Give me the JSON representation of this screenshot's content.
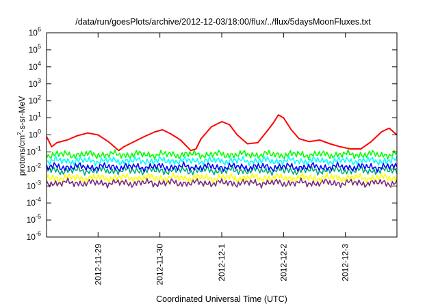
{
  "chart_data": {
    "type": "line",
    "title": "/data/run/goesPlots/archive/2012-12-03/18:00/flux/../flux/5daysMoonFluxes.txt",
    "xlabel": "Coordinated Universal Time (UTC)",
    "ylabel": "protons/cm2-s-sr-MeV",
    "ylabel_main": "protons/cm",
    "ylabel_sup": "2",
    "ylabel_rest": "-s-sr-MeV",
    "yscale": "log",
    "ylim": [
      1e-06,
      1000000.0
    ],
    "xlim": [
      "2012-11-28T04:00",
      "2012-12-03T20:00"
    ],
    "grid": false,
    "legend": "none",
    "x_ticks": [
      {
        "t": "2012-11-29",
        "label": "2012-11-29"
      },
      {
        "t": "2012-11-30",
        "label": "2012-11-30"
      },
      {
        "t": "2012-12-01",
        "label": "2012-12-1"
      },
      {
        "t": "2012-12-02",
        "label": "2012-12-2"
      },
      {
        "t": "2012-12-03",
        "label": "2012-12-3"
      }
    ],
    "y_ticks": [
      {
        "base": "10",
        "exp": "-6",
        "v": 1e-06
      },
      {
        "base": "10",
        "exp": "-5",
        "v": 1e-05
      },
      {
        "base": "10",
        "exp": "-4",
        "v": 0.0001
      },
      {
        "base": "10",
        "exp": "-3",
        "v": 0.001
      },
      {
        "base": "10",
        "exp": "-2",
        "v": 0.01
      },
      {
        "base": "10",
        "exp": "-1",
        "v": 0.1
      },
      {
        "base": "10",
        "exp": "0",
        "v": 1
      },
      {
        "base": "10",
        "exp": "1",
        "v": 10.0
      },
      {
        "base": "10",
        "exp": "2",
        "v": 100.0
      },
      {
        "base": "10",
        "exp": "3",
        "v": 1000.0
      },
      {
        "base": "10",
        "exp": "4",
        "v": 10000.0
      },
      {
        "base": "10",
        "exp": "5",
        "v": 100000.0
      },
      {
        "base": "10",
        "exp": "6",
        "v": 1000000.0
      }
    ],
    "series": [
      {
        "color": "#ff0000",
        "points": [
          [
            "2012-11-28T04:00",
            0.8
          ],
          [
            "2012-11-28T06:00",
            0.2
          ],
          [
            "2012-11-28T08:00",
            0.35
          ],
          [
            "2012-11-28T12:00",
            0.5
          ],
          [
            "2012-11-28T16:00",
            0.9
          ],
          [
            "2012-11-28T20:00",
            1.3
          ],
          [
            "2012-11-29T00:00",
            1.0
          ],
          [
            "2012-11-29T04:00",
            0.4
          ],
          [
            "2012-11-29T08:00",
            0.12
          ],
          [
            "2012-11-29T10:00",
            0.2
          ],
          [
            "2012-11-29T14:00",
            0.4
          ],
          [
            "2012-11-29T18:00",
            0.8
          ],
          [
            "2012-11-29T22:00",
            1.5
          ],
          [
            "2012-11-30T01:00",
            2.0
          ],
          [
            "2012-11-30T04:00",
            1.2
          ],
          [
            "2012-11-30T08:00",
            0.5
          ],
          [
            "2012-11-30T12:00",
            0.12
          ],
          [
            "2012-11-30T14:00",
            0.15
          ],
          [
            "2012-11-30T16:00",
            0.6
          ],
          [
            "2012-11-30T20:00",
            3.0
          ],
          [
            "2012-12-01T00:00",
            6.0
          ],
          [
            "2012-12-01T03:00",
            4.0
          ],
          [
            "2012-12-01T06:00",
            1.0
          ],
          [
            "2012-12-01T10:00",
            0.3
          ],
          [
            "2012-12-01T14:00",
            0.35
          ],
          [
            "2012-12-01T18:00",
            2.0
          ],
          [
            "2012-12-01T20:00",
            5.0
          ],
          [
            "2012-12-01T22:00",
            15.0
          ],
          [
            "2012-12-02T00:00",
            10.0
          ],
          [
            "2012-12-02T03:00",
            2.0
          ],
          [
            "2012-12-02T06:00",
            0.6
          ],
          [
            "2012-12-02T10:00",
            0.4
          ],
          [
            "2012-12-02T14:00",
            0.5
          ],
          [
            "2012-12-02T18:00",
            0.3
          ],
          [
            "2012-12-02T22:00",
            0.2
          ],
          [
            "2012-12-03T02:00",
            0.15
          ],
          [
            "2012-12-03T06:00",
            0.15
          ],
          [
            "2012-12-03T10:00",
            0.4
          ],
          [
            "2012-12-03T14:00",
            1.5
          ],
          [
            "2012-12-03T17:00",
            2.5
          ],
          [
            "2012-12-03T20:00",
            1.0
          ]
        ]
      },
      {
        "color": "#00ff00",
        "points": [
          [
            "2012-11-28T04:00",
            0.07
          ],
          [
            "2012-12-03T20:00",
            0.07
          ]
        ]
      },
      {
        "color": "#00ffff",
        "points": [
          [
            "2012-11-28T04:00",
            0.03
          ],
          [
            "2012-12-03T20:00",
            0.03
          ]
        ]
      },
      {
        "color": "#0000ff",
        "points": [
          [
            "2012-11-28T04:00",
            0.013
          ],
          [
            "2012-12-03T20:00",
            0.013
          ]
        ]
      },
      {
        "color": "#00aa77",
        "points": [
          [
            "2012-11-28T04:00",
            0.008
          ],
          [
            "2012-12-03T20:00",
            0.008
          ]
        ]
      },
      {
        "color": "#ffff00",
        "points": [
          [
            "2012-11-28T04:00",
            0.003
          ],
          [
            "2012-12-03T20:00",
            0.003
          ]
        ]
      },
      {
        "color": "#7a2a7a",
        "points": [
          [
            "2012-11-28T04:00",
            0.0015
          ],
          [
            "2012-12-03T20:00",
            0.0015
          ]
        ]
      }
    ]
  }
}
